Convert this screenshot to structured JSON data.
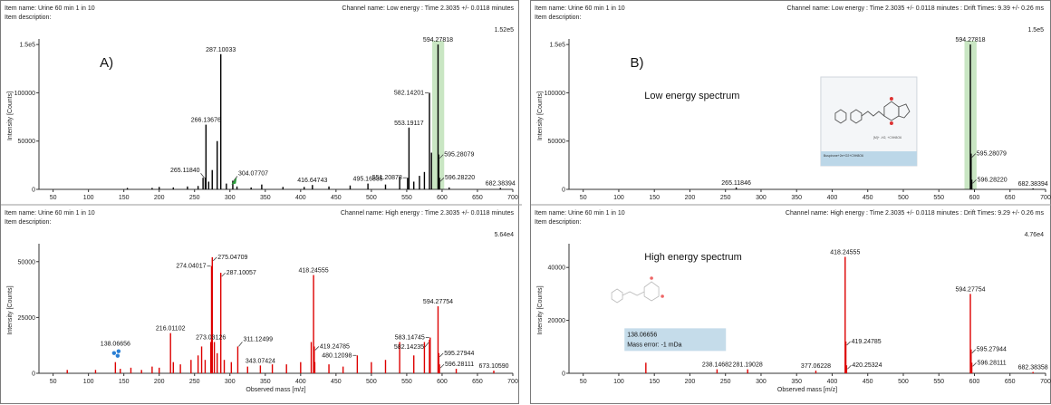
{
  "chart_data": [
    {
      "type": "line",
      "panel_label": "A)",
      "item_name": "Item name: Urine 60 min 1 in 10",
      "item_description": "Item description:",
      "channel": "Channel name: Low energy : Time 2.3035 +/- 0.0118 minutes",
      "scale": "1.52e5",
      "ylabel": "Intensity [Counts]",
      "xlabel": "",
      "color": "#000000",
      "highlight_color": "#c9e6c3",
      "xlim": [
        30,
        700
      ],
      "ylim": [
        0,
        152000
      ],
      "xticks": [
        50,
        100,
        150,
        200,
        250,
        300,
        350,
        400,
        450,
        500,
        550,
        600,
        650,
        700
      ],
      "yticks": [
        {
          "v": 0,
          "label": "0"
        },
        {
          "v": 50000,
          "label": "50000"
        },
        {
          "v": 100000,
          "label": "100000"
        },
        {
          "v": 150000,
          "label": "1.5e5"
        }
      ],
      "highlight": [
        586,
        603
      ],
      "icon": "green-arrow-icon",
      "peaks": [
        [
          155,
          1500
        ],
        [
          190,
          1500
        ],
        [
          200,
          2500
        ],
        [
          220,
          2000
        ],
        [
          240,
          3000
        ],
        [
          255,
          3500
        ],
        [
          262,
          12000
        ],
        [
          265.1184,
          12000
        ],
        [
          266.13676,
          67000
        ],
        [
          270,
          8000
        ],
        [
          275,
          20000
        ],
        [
          282,
          50000
        ],
        [
          287.10033,
          140000
        ],
        [
          295,
          6000
        ],
        [
          304.07707,
          9000
        ],
        [
          310,
          3000
        ],
        [
          330,
          2000
        ],
        [
          345,
          5000
        ],
        [
          375,
          2500
        ],
        [
          405,
          2500
        ],
        [
          416.64743,
          4500
        ],
        [
          440,
          3000
        ],
        [
          470,
          4000
        ],
        [
          495.16835,
          6000
        ],
        [
          520,
          5000
        ],
        [
          540,
          13000
        ],
        [
          551.20878,
          12000
        ],
        [
          553.19117,
          64000
        ],
        [
          560,
          8000
        ],
        [
          568,
          14000
        ],
        [
          575,
          18000
        ],
        [
          582.14201,
          100000
        ],
        [
          585,
          38000
        ],
        [
          594.27818,
          150000
        ],
        [
          595.28079,
          36000
        ],
        [
          596.2822,
          12000
        ],
        [
          610,
          2000
        ],
        [
          682.38394,
          1500
        ]
      ],
      "labels": [
        {
          "x": 287.10033,
          "y": 140000,
          "text": "287.10033",
          "pos": "above"
        },
        {
          "x": 594.27818,
          "y": 150000,
          "text": "594.27818",
          "pos": "above"
        },
        {
          "x": 266.13676,
          "y": 67000,
          "text": "266.13676",
          "pos": "above"
        },
        {
          "x": 582.14201,
          "y": 100000,
          "text": "582.14201",
          "pos": "left"
        },
        {
          "x": 553.19117,
          "y": 64000,
          "text": "553.19117",
          "pos": "above"
        },
        {
          "x": 595.28079,
          "y": 36000,
          "text": "595.28079",
          "pos": "right"
        },
        {
          "x": 265.1184,
          "y": 12000,
          "text": "265.11840",
          "pos": "leftup"
        },
        {
          "x": 304.07707,
          "y": 9000,
          "text": "304.07707",
          "pos": "rightup"
        },
        {
          "x": 416.64743,
          "y": 4500,
          "text": "416.64743",
          "pos": "above"
        },
        {
          "x": 495.16835,
          "y": 6000,
          "text": "495.16835",
          "pos": "above"
        },
        {
          "x": 551.20878,
          "y": 12000,
          "text": "551.20878",
          "pos": "left"
        },
        {
          "x": 596.2822,
          "y": 12000,
          "text": "596.28220",
          "pos": "right"
        },
        {
          "x": 682.38394,
          "y": 1500,
          "text": "682.38394",
          "pos": "above"
        }
      ]
    },
    {
      "type": "line",
      "item_name": "Item name: Urine 60 min 1 in 10",
      "item_description": "Item description:",
      "channel": "Channel name: High energy : Time 2.3035 +/- 0.0118 minutes",
      "scale": "5.64e4",
      "ylabel": "Intensity [Counts]",
      "xlabel": "Observed mass [m/z]",
      "color": "#dd0000",
      "xlim": [
        30,
        700
      ],
      "ylim": [
        0,
        56400
      ],
      "xticks": [
        50,
        100,
        150,
        200,
        250,
        300,
        350,
        400,
        450,
        500,
        550,
        600,
        650,
        700
      ],
      "yticks": [
        {
          "v": 0,
          "label": "0"
        },
        {
          "v": 25000,
          "label": "25000"
        },
        {
          "v": 50000,
          "label": "50000"
        }
      ],
      "icon": "blue-dots-icon",
      "peaks": [
        [
          70,
          1500
        ],
        [
          110,
          1500
        ],
        [
          138.06656,
          5000
        ],
        [
          145,
          2000
        ],
        [
          160,
          2500
        ],
        [
          175,
          1500
        ],
        [
          190,
          3000
        ],
        [
          200,
          2500
        ],
        [
          216.01102,
          18000
        ],
        [
          220,
          5000
        ],
        [
          230,
          4000
        ],
        [
          245,
          6000
        ],
        [
          255,
          8000
        ],
        [
          260,
          12000
        ],
        [
          265,
          6000
        ],
        [
          273.03126,
          14000
        ],
        [
          274.04017,
          48000
        ],
        [
          275.04709,
          52000
        ],
        [
          278,
          14000
        ],
        [
          282,
          9000
        ],
        [
          287.10057,
          45000
        ],
        [
          292,
          6000
        ],
        [
          302,
          5000
        ],
        [
          311.12499,
          12000
        ],
        [
          325,
          3000
        ],
        [
          343.07424,
          3500
        ],
        [
          360,
          4000
        ],
        [
          380,
          4000
        ],
        [
          400,
          5000
        ],
        [
          415,
          14000
        ],
        [
          418.24555,
          44000
        ],
        [
          419.24785,
          12000
        ],
        [
          420,
          5000
        ],
        [
          440,
          4000
        ],
        [
          460,
          3000
        ],
        [
          480.12098,
          8000
        ],
        [
          500,
          5000
        ],
        [
          520,
          6000
        ],
        [
          540,
          14000
        ],
        [
          560,
          8000
        ],
        [
          575,
          14000
        ],
        [
          582.14235,
          15000
        ],
        [
          583.14745,
          16000
        ],
        [
          594.27754,
          30000
        ],
        [
          595.27944,
          9000
        ],
        [
          596.28111,
          4000
        ],
        [
          620,
          2000
        ],
        [
          673.1059,
          1200
        ]
      ],
      "labels": [
        {
          "x": 275.04709,
          "y": 52000,
          "text": "275.04709",
          "pos": "right"
        },
        {
          "x": 274.04017,
          "y": 48000,
          "text": "274.04017",
          "pos": "left"
        },
        {
          "x": 287.10057,
          "y": 45000,
          "text": "287.10057",
          "pos": "right"
        },
        {
          "x": 418.24555,
          "y": 44000,
          "text": "418.24555",
          "pos": "above"
        },
        {
          "x": 216.01102,
          "y": 18000,
          "text": "216.01102",
          "pos": "above"
        },
        {
          "x": 138.06656,
          "y": 5000,
          "text": "138.06656",
          "pos": "highabove"
        },
        {
          "x": 273.03126,
          "y": 14000,
          "text": "273.03126",
          "pos": "above"
        },
        {
          "x": 311.12499,
          "y": 12000,
          "text": "311.12499",
          "pos": "rightup"
        },
        {
          "x": 343.07424,
          "y": 3500,
          "text": "343.07424",
          "pos": "above"
        },
        {
          "x": 419.24785,
          "y": 12000,
          "text": "419.24785",
          "pos": "right"
        },
        {
          "x": 480.12098,
          "y": 8000,
          "text": "480.12098",
          "pos": "left"
        },
        {
          "x": 594.27754,
          "y": 30000,
          "text": "594.27754",
          "pos": "above"
        },
        {
          "x": 583.14745,
          "y": 16000,
          "text": "583.14745",
          "pos": "left"
        },
        {
          "x": 582.14235,
          "y": 15000,
          "text": "582.14235",
          "pos": "leftdown"
        },
        {
          "x": 595.27944,
          "y": 9000,
          "text": "595.27944",
          "pos": "right"
        },
        {
          "x": 596.28111,
          "y": 4000,
          "text": "596.28111",
          "pos": "right"
        },
        {
          "x": 673.1059,
          "y": 1200,
          "text": "673.10590",
          "pos": "above"
        }
      ]
    },
    {
      "type": "line",
      "panel_label": "B)",
      "item_name": "Item name: Urine 60 min 1 in 10",
      "item_description": "Item description:",
      "channel": "Channel name: Low energy : Time 2.3035 +/- 0.0118 minutes : Drift Times: 9.39 +/- 0.26 ms",
      "scale": "1.5e5",
      "ylabel": "Intensity [Counts]",
      "xlabel": "",
      "color": "#000000",
      "highlight_color": "#c9e6c3",
      "xlim": [
        30,
        700
      ],
      "ylim": [
        0,
        152000
      ],
      "xticks": [
        50,
        100,
        150,
        200,
        250,
        300,
        350,
        400,
        450,
        500,
        550,
        600,
        650,
        700
      ],
      "yticks": [
        {
          "v": 0,
          "label": "0"
        },
        {
          "v": 50000,
          "label": "50000"
        },
        {
          "v": 100000,
          "label": "100000"
        },
        {
          "v": 150000,
          "label": "1.5e5"
        }
      ],
      "highlight": [
        586,
        603
      ],
      "annotation": "Low energy spectrum",
      "inset": {
        "text_line1": "Buspirone+2e+O2+C9H8O6",
        "text_line2": "[M]+ -H2, +C9H8O6"
      },
      "peaks": [
        [
          265.11846,
          2000
        ],
        [
          594.27818,
          150000
        ],
        [
          595.28079,
          37000
        ],
        [
          596.2822,
          10000
        ],
        [
          682.38394,
          1000
        ]
      ],
      "labels": [
        {
          "x": 594.27818,
          "y": 150000,
          "text": "594.27818",
          "pos": "above"
        },
        {
          "x": 595.28079,
          "y": 37000,
          "text": "595.28079",
          "pos": "right"
        },
        {
          "x": 596.2822,
          "y": 10000,
          "text": "596.28220",
          "pos": "right"
        },
        {
          "x": 682.38394,
          "y": 1000,
          "text": "682.38394",
          "pos": "above"
        },
        {
          "x": 265.11846,
          "y": 2000,
          "text": "265.11846",
          "pos": "above"
        }
      ]
    },
    {
      "type": "line",
      "item_name": "Item name: Urine 60 min 1 in 10",
      "item_description": "Item description:",
      "channel": "Channel name: High energy : Time 2.3035 +/- 0.0118 minutes : Drift Times: 9.29 +/- 0.26 ms",
      "scale": "4.76e4",
      "ylabel": "Intensity [Counts]",
      "xlabel": "Observed mass [m/z]",
      "color": "#dd0000",
      "xlim": [
        30,
        700
      ],
      "ylim": [
        0,
        47600
      ],
      "xticks": [
        50,
        100,
        150,
        200,
        250,
        300,
        350,
        400,
        450,
        500,
        550,
        600,
        650,
        700
      ],
      "yticks": [
        {
          "v": 0,
          "label": "0"
        },
        {
          "v": 20000,
          "label": "20000"
        },
        {
          "v": 40000,
          "label": "40000"
        }
      ],
      "annotation": "High energy spectrum",
      "callout": {
        "line1": "138.06656",
        "line2": "Mass error: -1 mDa",
        "color": "#c5dcea"
      },
      "peaks": [
        [
          138.06656,
          4000
        ],
        [
          238.14682,
          1500
        ],
        [
          281.19028,
          1500
        ],
        [
          377.06228,
          1000
        ],
        [
          418.24555,
          44000
        ],
        [
          419.24785,
          12000
        ],
        [
          420.25324,
          3000
        ],
        [
          594.27754,
          30000
        ],
        [
          595.27944,
          9000
        ],
        [
          596.28111,
          4000
        ],
        [
          682.38358,
          500
        ]
      ],
      "labels": [
        {
          "x": 418.24555,
          "y": 44000,
          "text": "418.24555",
          "pos": "above"
        },
        {
          "x": 594.27754,
          "y": 30000,
          "text": "594.27754",
          "pos": "above"
        },
        {
          "x": 419.24785,
          "y": 12000,
          "text": "419.24785",
          "pos": "right"
        },
        {
          "x": 420.25324,
          "y": 3000,
          "text": "420.25324",
          "pos": "right"
        },
        {
          "x": 595.27944,
          "y": 9000,
          "text": "595.27944",
          "pos": "right"
        },
        {
          "x": 596.28111,
          "y": 4000,
          "text": "596.28111",
          "pos": "right"
        },
        {
          "x": 682.38358,
          "y": 500,
          "text": "682.38358",
          "pos": "above"
        },
        {
          "x": 238.14682,
          "y": 1500,
          "text": "238.14682",
          "pos": "above"
        },
        {
          "x": 281.19028,
          "y": 1500,
          "text": "281.19028",
          "pos": "above"
        },
        {
          "x": 377.06228,
          "y": 1000,
          "text": "377.06228",
          "pos": "above"
        }
      ]
    }
  ]
}
